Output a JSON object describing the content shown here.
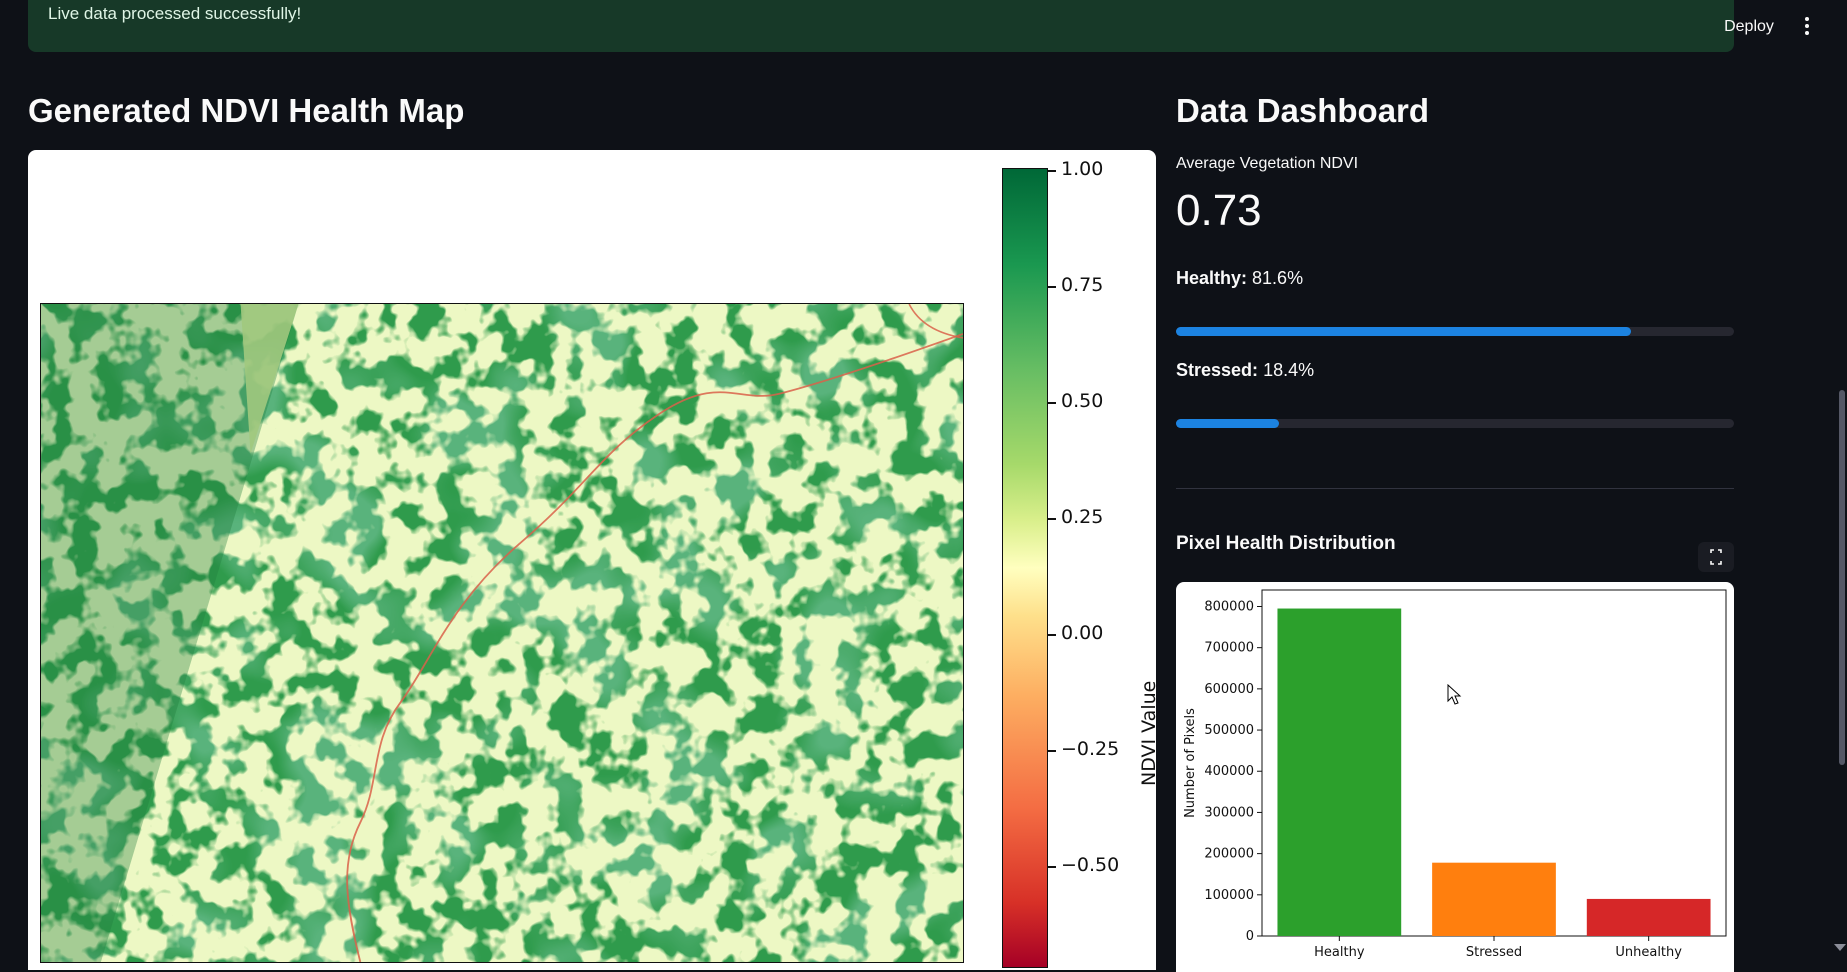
{
  "banner": {
    "message": "Live data processed successfully!"
  },
  "toolbar": {
    "deploy_label": "Deploy",
    "menu_icon": "more-vertical-icon"
  },
  "map_section": {
    "title": "Generated NDVI Health Map",
    "colorbar": {
      "label": "NDVI Value",
      "ticks": [
        "1.00",
        "0.75",
        "0.50",
        "0.25",
        "0.00",
        "−0.25",
        "−0.50"
      ]
    }
  },
  "dashboard": {
    "title": "Data Dashboard",
    "metric": {
      "label": "Average Vegetation NDVI",
      "value": "0.73"
    },
    "healthy": {
      "label": "Healthy:",
      "value": "81.6%",
      "progress": 0.816
    },
    "stressed": {
      "label": "Stressed:",
      "value": "18.4%",
      "progress": 0.184
    },
    "chart_title": "Pixel Health Distribution",
    "expand_icon": "fullscreen-icon"
  },
  "colors": {
    "background": "#0e1117",
    "banner": "#173928",
    "progress": "#1c83e1",
    "healthy_bar": "#2ca02c",
    "stressed_bar": "#ff7f0e",
    "unhealthy_bar": "#d62728"
  },
  "chart_data": {
    "type": "bar",
    "title": "Pixel Health Distribution",
    "categories": [
      "Healthy",
      "Stressed",
      "Unhealthy"
    ],
    "values": [
      795000,
      178000,
      90000
    ],
    "colors": [
      "#2ca02c",
      "#ff7f0e",
      "#d62728"
    ],
    "xlabel": "",
    "ylabel": "Number of Pixels",
    "ylim": [
      0,
      840000
    ],
    "yticks": [
      0,
      100000,
      200000,
      300000,
      400000,
      500000,
      600000,
      700000,
      800000
    ]
  }
}
